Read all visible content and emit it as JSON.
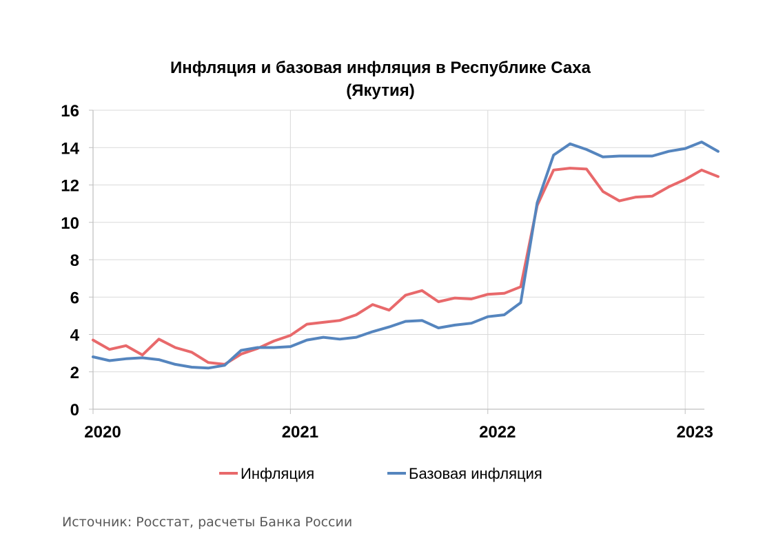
{
  "chart_data": {
    "type": "line",
    "title": "Инфляция и базовая инфляция в Республике Саха (Якутия)",
    "title_lines": [
      "Инфляция и базовая инфляция в Республике Саха",
      "(Якутия)"
    ],
    "xlabel": "",
    "ylabel": "",
    "ylim": [
      0,
      16
    ],
    "yticks": [
      0,
      2,
      4,
      6,
      8,
      10,
      12,
      14,
      16
    ],
    "x_tick_labels": [
      "2020",
      "2021",
      "2022",
      "2023"
    ],
    "x_start": "2020-01",
    "x_end": "2023-02",
    "grid": true,
    "legend_position": "bottom",
    "source": "Источник: Росстат, расчеты Банка России",
    "series": [
      {
        "name": "Инфляция",
        "color": "#e8696b",
        "values": [
          3.7,
          3.2,
          3.4,
          2.9,
          3.75,
          3.3,
          3.05,
          2.5,
          2.4,
          2.95,
          3.25,
          3.65,
          3.95,
          4.55,
          4.65,
          4.75,
          5.05,
          5.6,
          5.3,
          6.1,
          6.35,
          5.75,
          5.95,
          5.9,
          6.15,
          6.2,
          6.55,
          10.9,
          12.8,
          12.9,
          12.85,
          11.65,
          11.15,
          11.35,
          11.4,
          11.9,
          12.3,
          12.8,
          12.45
        ]
      },
      {
        "name": "Базовая инфляция",
        "color": "#5585be",
        "values": [
          2.8,
          2.6,
          2.7,
          2.75,
          2.65,
          2.4,
          2.25,
          2.2,
          2.35,
          3.15,
          3.3,
          3.3,
          3.35,
          3.7,
          3.85,
          3.75,
          3.85,
          4.15,
          4.4,
          4.7,
          4.75,
          4.35,
          4.5,
          4.6,
          4.95,
          5.05,
          5.7,
          11.05,
          13.6,
          14.2,
          13.9,
          13.5,
          13.55,
          13.55,
          13.55,
          13.8,
          13.95,
          14.3,
          13.8
        ]
      }
    ]
  }
}
